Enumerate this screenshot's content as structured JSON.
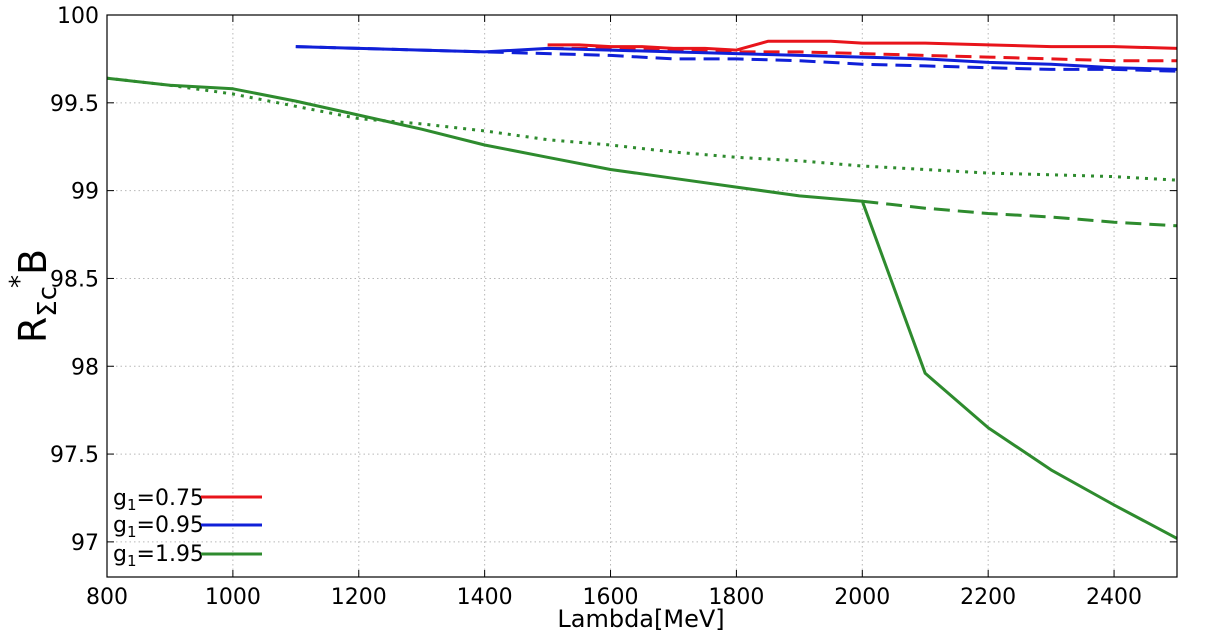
{
  "chart_data": {
    "type": "line",
    "title": "",
    "xlabel": "Lambda[MeV]",
    "ylabel": {
      "main": "R",
      "subscript": "Σc",
      "subscript_c": "c",
      "superscript": "*",
      "tail": "B"
    },
    "xlim": [
      800,
      2500
    ],
    "ylim": [
      96.8,
      100
    ],
    "x_ticks": [
      800,
      1000,
      1200,
      1400,
      1600,
      1800,
      2000,
      2200,
      2400
    ],
    "y_ticks": [
      97,
      97.5,
      98,
      98.5,
      99,
      99.5,
      100
    ],
    "y_tick_labels": [
      "97",
      "97.5",
      "98",
      "98.5",
      "99",
      "99.5",
      "100"
    ],
    "grid": true,
    "legend_position": "bottom-left",
    "legend": [
      {
        "prefix": "g",
        "sub": "1",
        "suffix": "=0.75",
        "color": "#e8141b"
      },
      {
        "prefix": "g",
        "sub": "1",
        "suffix": "=0.95",
        "color": "#1020d8"
      },
      {
        "prefix": "g",
        "sub": "1",
        "suffix": "=1.95",
        "color": "#2e8b2e"
      }
    ],
    "series": [
      {
        "group": "g1=0.75",
        "style": "solid",
        "color": "#e8141b",
        "x": [
          1500,
          1550,
          1600,
          1650,
          1700,
          1750,
          1800,
          1850,
          1900,
          1950,
          2000,
          2100,
          2200,
          2300,
          2400,
          2500
        ],
        "y": [
          99.83,
          99.83,
          99.82,
          99.82,
          99.81,
          99.81,
          99.8,
          99.85,
          99.85,
          99.85,
          99.84,
          99.84,
          99.83,
          99.82,
          99.82,
          99.81
        ]
      },
      {
        "group": "g1=0.75",
        "style": "dashed",
        "color": "#e8141b",
        "x": [
          1500,
          1600,
          1700,
          1800,
          1900,
          2000,
          2100,
          2200,
          2300,
          2400,
          2500
        ],
        "y": [
          99.81,
          99.81,
          99.8,
          99.79,
          99.79,
          99.78,
          99.77,
          99.76,
          99.75,
          99.74,
          99.74
        ]
      },
      {
        "group": "g1=0.95",
        "style": "solid",
        "color": "#1020d8",
        "x": [
          1100,
          1200,
          1300,
          1400,
          1500,
          1600,
          1700,
          1800,
          1900,
          2000,
          2100,
          2200,
          2300,
          2400,
          2500
        ],
        "y": [
          99.82,
          99.81,
          99.8,
          99.79,
          99.81,
          99.8,
          99.79,
          99.78,
          99.77,
          99.76,
          99.75,
          99.73,
          99.72,
          99.7,
          99.69
        ]
      },
      {
        "group": "g1=0.95",
        "style": "dashed",
        "color": "#1020d8",
        "x": [
          1100,
          1200,
          1300,
          1400,
          1500,
          1600,
          1700,
          1800,
          1900,
          2000,
          2100,
          2200,
          2300,
          2400,
          2500
        ],
        "y": [
          99.82,
          99.81,
          99.8,
          99.79,
          99.78,
          99.77,
          99.75,
          99.75,
          99.74,
          99.72,
          99.71,
          99.7,
          99.69,
          99.69,
          99.68
        ]
      },
      {
        "group": "g1=1.95",
        "style": "solid",
        "color": "#2e8b2e",
        "x": [
          800,
          900,
          1000,
          1100,
          1200,
          1300,
          1400,
          1500,
          1600,
          1700,
          1800,
          1900,
          2000,
          2100,
          2200,
          2300,
          2400,
          2500
        ],
        "y": [
          99.64,
          99.6,
          99.58,
          99.51,
          99.43,
          99.35,
          99.26,
          99.19,
          99.12,
          99.07,
          99.02,
          98.97,
          98.94,
          97.96,
          97.65,
          97.41,
          97.21,
          97.02
        ]
      },
      {
        "group": "g1=1.95",
        "style": "dashed",
        "color": "#2e8b2e",
        "x": [
          2000,
          2100,
          2200,
          2300,
          2400,
          2500
        ],
        "y": [
          98.94,
          98.9,
          98.87,
          98.85,
          98.82,
          98.8
        ]
      },
      {
        "group": "g1=1.95",
        "style": "dotted",
        "color": "#2e8b2e",
        "x": [
          800,
          900,
          1000,
          1100,
          1200,
          1300,
          1400,
          1500,
          1600,
          1700,
          1800,
          1900,
          2000,
          2100,
          2200,
          2300,
          2400,
          2500
        ],
        "y": [
          99.64,
          99.6,
          99.55,
          99.48,
          99.41,
          99.38,
          99.34,
          99.29,
          99.26,
          99.22,
          99.19,
          99.17,
          99.14,
          99.12,
          99.1,
          99.09,
          99.08,
          99.06
        ]
      }
    ]
  }
}
